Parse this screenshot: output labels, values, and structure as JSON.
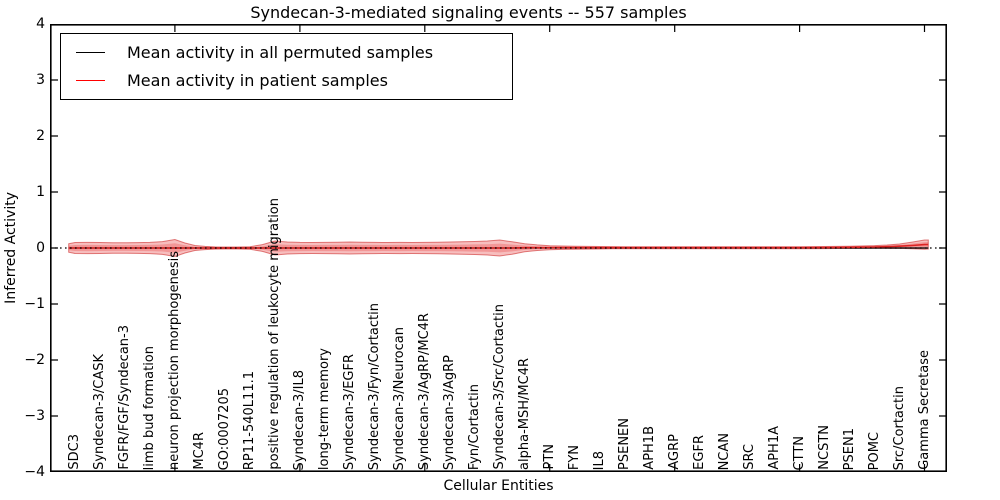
{
  "figure": {
    "title": "Syndecan-3-mediated signaling events -- 557 samples",
    "xlabel": "Cellular Entities",
    "ylabel": "Inferred Activity"
  },
  "legend": {
    "items": [
      {
        "label": "Mean activity in all permuted samples",
        "color": "#000000"
      },
      {
        "label": "Mean activity in patient samples",
        "color": "#ff0000"
      }
    ]
  },
  "colors": {
    "band_fill": "rgba(229,40,40,0.30)",
    "band_inner_fill": "rgba(229,40,40,0.26)",
    "band_edge": "rgba(200,25,25,0.55)",
    "patient_line": "#dd2222",
    "permuted_line": "#000000",
    "zero_line": "#000000",
    "axis": "#000000"
  },
  "chart_data": {
    "type": "area",
    "subtype": "violin-band-with-mean-lines",
    "title": "Syndecan-3-mediated signaling events -- 557 samples",
    "xlabel": "Cellular Entities",
    "ylabel": "Inferred Activity",
    "ylim": [
      -4,
      4
    ],
    "xlim": [
      0,
      35.9
    ],
    "grid": false,
    "legend_position": "upper left",
    "y_ticks": [
      4,
      3,
      2,
      1,
      0,
      -1,
      -2,
      -3,
      -4
    ],
    "y_tick_labels": [
      "4",
      "3",
      "2",
      "1",
      "0",
      "−1",
      "−2",
      "−3",
      "−4"
    ],
    "x_major_tick_positions": [
      5,
      10,
      15,
      20,
      25,
      30,
      35
    ],
    "categories": [
      "SDC3",
      "Syndecan-3/CASK",
      "FGFR/FGF/Syndecan-3",
      "limb bud formation",
      "neuron projection morphogenesis",
      "MC4R",
      "GO:0007205",
      "RP11-540L11.1",
      "positive regulation of leukocyte migration",
      "Syndecan-3/IL8",
      "long-term memory",
      "Syndecan-3/EGFR",
      "Syndecan-3/Fyn/Cortactin",
      "Syndecan-3/Neurocan",
      "Syndecan-3/AgRP/MC4R",
      "Syndecan-3/AgRP",
      "Fyn/Cortactin",
      "Syndecan-3/Src/Cortactin",
      "alpha-MSH/MC4R",
      "PTN",
      "FYN",
      "IL8",
      "PSENEN",
      "APH1B",
      "AGRP",
      "EGFR",
      "NCAN",
      "SRC",
      "APH1A",
      "CTTN",
      "NCSTN",
      "PSEN1",
      "POMC",
      "Src/Cortactin",
      "Gamma Secretase"
    ],
    "series": [
      {
        "name": "Mean activity in all permuted samples",
        "color": "#000000",
        "style": "solid",
        "values": [
          0,
          0,
          0,
          0,
          0,
          0,
          0,
          0,
          0,
          0,
          0,
          0,
          0,
          0,
          0,
          0,
          0,
          0,
          0,
          0,
          0,
          0,
          0,
          0,
          0,
          0,
          0,
          0,
          0,
          0,
          0,
          0,
          0,
          0,
          0
        ]
      },
      {
        "name": "Mean activity in patient samples",
        "color": "#ff0000",
        "style": "solid",
        "values": [
          0,
          0,
          0,
          0,
          0,
          0,
          0,
          0,
          0,
          0,
          0,
          0,
          0,
          0,
          0,
          0,
          0,
          0,
          0.005,
          0.005,
          0.005,
          0.005,
          0.005,
          0.005,
          0.005,
          0.005,
          0.005,
          0.005,
          0.005,
          0.005,
          0.01,
          0.015,
          0.02,
          0.035,
          0.065
        ]
      }
    ],
    "zero_line": {
      "y": 0,
      "style": "dotted",
      "color": "#000000"
    },
    "band": {
      "name": "patient activity distribution (violin band)",
      "comment": "points are [x_position, half_width, center] in data units",
      "points": [
        [
          0.75,
          0.075,
          0
        ],
        [
          1,
          0.098,
          0
        ],
        [
          1.5,
          0.1,
          0
        ],
        [
          2,
          0.098,
          0
        ],
        [
          2.5,
          0.095,
          0
        ],
        [
          3,
          0.093,
          0
        ],
        [
          3.5,
          0.096,
          0
        ],
        [
          4,
          0.1,
          0
        ],
        [
          4.5,
          0.115,
          0
        ],
        [
          5,
          0.152,
          0
        ],
        [
          5.4,
          0.09,
          0
        ],
        [
          5.8,
          0.045,
          0
        ],
        [
          6.2,
          0.028,
          0
        ],
        [
          6.6,
          0.02,
          0
        ],
        [
          7,
          0.018,
          0
        ],
        [
          7.5,
          0.018,
          0
        ],
        [
          8,
          0.024,
          0
        ],
        [
          8.5,
          0.06,
          0
        ],
        [
          9,
          0.125,
          0
        ],
        [
          9.5,
          0.108,
          0
        ],
        [
          10,
          0.1,
          0
        ],
        [
          10.5,
          0.098,
          0
        ],
        [
          11,
          0.1,
          0
        ],
        [
          11.5,
          0.102,
          0
        ],
        [
          12,
          0.107,
          0
        ],
        [
          12.5,
          0.102,
          0
        ],
        [
          13,
          0.1,
          0
        ],
        [
          13.5,
          0.098,
          0
        ],
        [
          14,
          0.1,
          0
        ],
        [
          14.5,
          0.098,
          0
        ],
        [
          15,
          0.1,
          0
        ],
        [
          15.5,
          0.102,
          0
        ],
        [
          16,
          0.107,
          0
        ],
        [
          16.5,
          0.11,
          0
        ],
        [
          17,
          0.116,
          0
        ],
        [
          17.5,
          0.125,
          0
        ],
        [
          18,
          0.143,
          0
        ],
        [
          18.5,
          0.11,
          0
        ],
        [
          19,
          0.071,
          0.005
        ],
        [
          19.5,
          0.05,
          0.005
        ],
        [
          20,
          0.036,
          0.005
        ],
        [
          20.5,
          0.03,
          0.005
        ],
        [
          21,
          0.027,
          0.005
        ],
        [
          21.5,
          0.024,
          0.005
        ],
        [
          22,
          0.022,
          0.005
        ],
        [
          22.5,
          0.02,
          0.005
        ],
        [
          23,
          0.019,
          0.005
        ],
        [
          24,
          0.018,
          0.005
        ],
        [
          25,
          0.018,
          0.005
        ],
        [
          26,
          0.018,
          0.005
        ],
        [
          27,
          0.018,
          0.005
        ],
        [
          28,
          0.018,
          0.005
        ],
        [
          29,
          0.018,
          0.005
        ],
        [
          30,
          0.018,
          0.005
        ],
        [
          31,
          0.018,
          0.008
        ],
        [
          32,
          0.02,
          0.012
        ],
        [
          33,
          0.024,
          0.018
        ],
        [
          33.5,
          0.03,
          0.024
        ],
        [
          34,
          0.04,
          0.032
        ],
        [
          34.5,
          0.06,
          0.045
        ],
        [
          35,
          0.082,
          0.06
        ],
        [
          35.15,
          0.08,
          0.063
        ]
      ]
    }
  }
}
